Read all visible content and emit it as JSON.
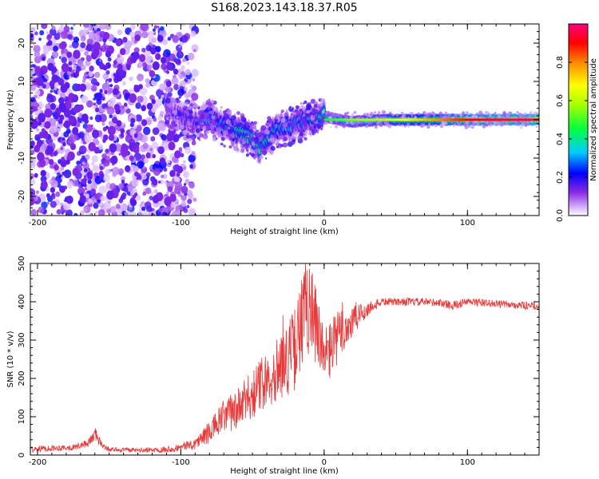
{
  "figure": {
    "title": "S168.2023.143.18.37.R05"
  },
  "chart_data": [
    {
      "type": "heatmap",
      "xlabel": "Height of straight line (km)",
      "ylabel": "Frequency (Hz)",
      "xlim": [
        -205,
        150
      ],
      "ylim": [
        -25,
        25
      ],
      "xticks": [
        -200,
        -100,
        0,
        100
      ],
      "yticks": [
        -20,
        -10,
        0,
        10,
        20
      ],
      "grid": false,
      "colorbar": {
        "label": "Normalized spectral amplitude",
        "range": [
          0,
          1
        ],
        "ticks": [
          "0.0",
          "0.2",
          "0.4",
          "0.6",
          "0.8"
        ],
        "colormap": "hsv"
      },
      "ridge": {
        "x": [
          -110,
          -100,
          -90,
          -80,
          -70,
          -60,
          -50,
          -45,
          -40,
          -30,
          -20,
          -10,
          0,
          10,
          20,
          40,
          60,
          80,
          100,
          120,
          150
        ],
        "y": [
          3,
          1,
          -1,
          1,
          -2,
          -3,
          -5,
          -7,
          -5,
          -2,
          -1,
          0,
          1,
          0,
          -0.5,
          0,
          0,
          0,
          0,
          0,
          0
        ],
        "amplitude": [
          0.18,
          0.2,
          0.22,
          0.3,
          0.35,
          0.4,
          0.42,
          0.45,
          0.4,
          0.35,
          0.3,
          0.35,
          0.45,
          0.5,
          0.55,
          0.6,
          0.7,
          0.8,
          0.9,
          0.95,
          0.98
        ]
      },
      "noise_region": {
        "x_range": [
          -205,
          -100
        ],
        "y_range": [
          -25,
          25
        ]
      }
    },
    {
      "type": "line",
      "xlabel": "Height of straight line (km)",
      "ylabel": "SNR (10 * v/v)",
      "xlim": [
        -205,
        150
      ],
      "ylim": [
        0,
        500
      ],
      "xticks": [
        -200,
        -100,
        0,
        100
      ],
      "yticks": [
        0,
        100,
        200,
        300,
        400,
        500
      ],
      "grid": false,
      "series": [
        {
          "color": "#e83a3a",
          "x": [
            -205,
            -190,
            -175,
            -165,
            -160,
            -155,
            -150,
            -130,
            -110,
            -100,
            -90,
            -80,
            -70,
            -60,
            -50,
            -40,
            -30,
            -20,
            -15,
            -10,
            -5,
            0,
            10,
            20,
            30,
            40,
            60,
            80,
            90,
            100,
            120,
            150
          ],
          "y": [
            15,
            18,
            20,
            30,
            55,
            25,
            15,
            12,
            15,
            20,
            30,
            60,
            100,
            120,
            160,
            200,
            230,
            280,
            350,
            420,
            310,
            250,
            310,
            350,
            380,
            400,
            400,
            398,
            390,
            400,
            395,
            388
          ],
          "noise_amplitude": [
            8,
            8,
            8,
            10,
            20,
            8,
            6,
            6,
            8,
            10,
            15,
            30,
            45,
            55,
            65,
            75,
            90,
            110,
            130,
            150,
            120,
            90,
            70,
            50,
            20,
            10,
            10,
            10,
            12,
            10,
            10,
            10
          ]
        }
      ]
    }
  ]
}
